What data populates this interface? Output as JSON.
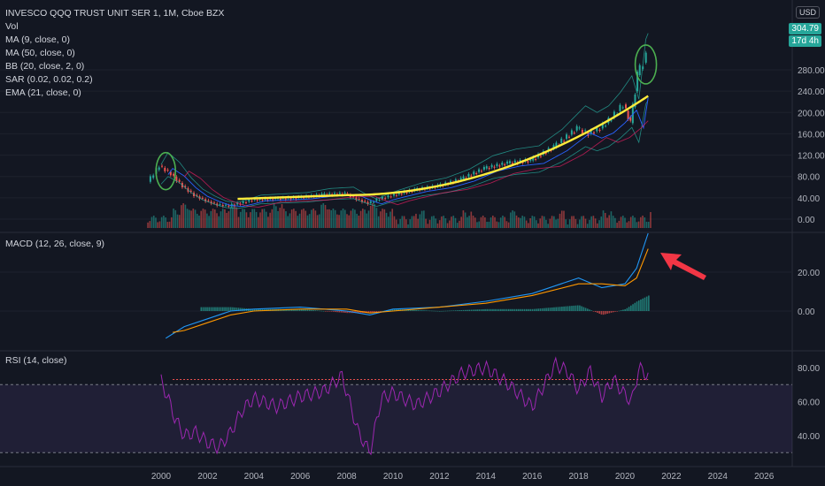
{
  "header": {
    "title": "INVESCO QQQ TRUST UNIT SER 1, 1M, Cboe BZX",
    "currency": "USD"
  },
  "indicators": [
    "Vol",
    "MA (9, close, 0)",
    "MA (50, close, 0)",
    "BB (20, close, 2, 0)",
    "SAR (0.02, 0.02, 0.2)",
    "EMA (21, close, 0)"
  ],
  "last_price": "304.79",
  "countdown": "17d 4h",
  "macd_label": "MACD (12, 26, close, 9)",
  "rsi_label": "RSI (14, close)",
  "colors": {
    "up": "#26a69a",
    "down": "#ef5350",
    "yellow": "#ffeb3b",
    "macd": "#2196f3",
    "signal": "#ff9800",
    "rsi": "#9c27b0",
    "arrow": "#f23645"
  },
  "chart_data": [
    {
      "type": "candlestick",
      "pane": "price",
      "yticks": [
        0,
        40,
        80,
        120,
        160,
        200,
        240,
        280
      ],
      "ylim": [
        0,
        320
      ],
      "series": [
        {
          "name": "QQQ",
          "x": [
            1999.5,
            2000.0,
            2000.5,
            2001.0,
            2001.5,
            2002.0,
            2002.5,
            2003.0,
            2003.5,
            2004.0,
            2005.0,
            2006.0,
            2007.0,
            2008.0,
            2008.5,
            2009.0,
            2009.5,
            2010.0,
            2011.0,
            2012.0,
            2013.0,
            2014.0,
            2015.0,
            2016.0,
            2017.0,
            2018.0,
            2018.5,
            2019.0,
            2019.5,
            2020.0,
            2020.3,
            2020.6,
            2021.0
          ],
          "y": [
            70,
            100,
            85,
            62,
            45,
            35,
            27,
            25,
            30,
            36,
            38,
            40,
            46,
            48,
            38,
            30,
            38,
            44,
            55,
            62,
            75,
            95,
            105,
            110,
            135,
            170,
            160,
            170,
            190,
            215,
            180,
            270,
            305
          ]
        }
      ],
      "annotations": [
        "Circle at 2000 peak",
        "Circle at 2021 peak",
        "Yellow EMA trend curve"
      ]
    },
    {
      "type": "line",
      "pane": "macd",
      "yticks": [
        0,
        20
      ],
      "series": [
        {
          "name": "MACD",
          "x": [
            2000.2,
            2001,
            2002,
            2003,
            2004,
            2006,
            2008,
            2009,
            2010,
            2012,
            2014,
            2016,
            2018,
            2019,
            2020,
            2020.5,
            2021
          ],
          "y": [
            -14,
            -8,
            -4,
            0,
            1,
            2,
            0,
            -2,
            1,
            2,
            5,
            9,
            17,
            12,
            14,
            22,
            40
          ]
        },
        {
          "name": "Signal",
          "x": [
            2000.5,
            2001,
            2002,
            2003,
            2004,
            2006,
            2008,
            2009,
            2010,
            2012,
            2014,
            2016,
            2018,
            2019,
            2020,
            2020.5,
            2021
          ],
          "y": [
            -11,
            -10,
            -6,
            -2,
            0,
            1,
            1,
            -1,
            0,
            2,
            4,
            8,
            14,
            14,
            13,
            17,
            32
          ]
        }
      ]
    },
    {
      "type": "line",
      "pane": "rsi",
      "yticks": [
        40,
        60,
        80
      ],
      "series": [
        {
          "name": "RSI",
          "x": [
            2000.0,
            2000.3,
            2000.6,
            2001.0,
            2001.5,
            2002.0,
            2002.5,
            2003.0,
            2003.5,
            2004.0,
            2005.0,
            2006.0,
            2007.0,
            2007.8,
            2008.5,
            2009.0,
            2009.5,
            2010.0,
            2011.0,
            2012.0,
            2013.0,
            2014.0,
            2015.0,
            2016.0,
            2017.0,
            2017.5,
            2018.0,
            2018.5,
            2019.0,
            2019.5,
            2020.0,
            2020.3,
            2020.6,
            2021.0
          ],
          "y": [
            72,
            62,
            50,
            40,
            42,
            36,
            33,
            42,
            55,
            62,
            57,
            63,
            66,
            75,
            42,
            30,
            62,
            65,
            58,
            66,
            77,
            80,
            70,
            57,
            82,
            78,
            67,
            78,
            63,
            73,
            64,
            60,
            80,
            75
          ]
        }
      ]
    }
  ],
  "x_axis": {
    "ticks": [
      "2000",
      "2002",
      "2004",
      "2006",
      "2008",
      "2010",
      "2012",
      "2014",
      "2016",
      "2018",
      "2020",
      "2022",
      "2024",
      "2026"
    ]
  }
}
